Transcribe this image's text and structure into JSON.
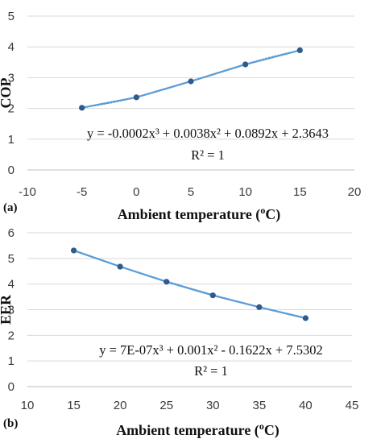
{
  "chart_data": [
    {
      "type": "scatter",
      "panel_label": "(a)",
      "xlabel_main": "Ambient temperature (",
      "xlabel_sup": "o",
      "xlabel_end": "C)",
      "ylabel": "COP",
      "xlim": [
        -10,
        20
      ],
      "ylim": [
        0,
        5
      ],
      "x_ticks": [
        "-10",
        "-5",
        "0",
        "5",
        "10",
        "15",
        "20"
      ],
      "y_ticks": [
        "0",
        "1",
        "2",
        "3",
        "4",
        "5"
      ],
      "grid": true,
      "series": [
        {
          "x": [
            -5,
            0,
            5,
            10,
            15
          ],
          "y": [
            2.02,
            2.36,
            2.88,
            3.43,
            3.89
          ]
        }
      ],
      "trendline": {
        "type": "poly3",
        "coef": [
          -0.0002,
          0.0038,
          0.0892,
          2.3643
        ],
        "style": "dotted"
      },
      "equation": "y = -0.0002x³ + 0.0038x² + 0.0892x + 2.3643",
      "r2": "R² = 1",
      "colors": {
        "marker": "#2e5b8c",
        "line": "#5b9bd5",
        "trend": "#5b9bd5"
      }
    },
    {
      "type": "scatter",
      "panel_label": "(b)",
      "xlabel_main": "Ambient temperature (",
      "xlabel_sup": "o",
      "xlabel_end": "C)",
      "ylabel": "EER",
      "xlim": [
        10,
        45
      ],
      "ylim": [
        0,
        6
      ],
      "x_ticks": [
        "10",
        "15",
        "20",
        "25",
        "30",
        "35",
        "40",
        "45"
      ],
      "y_ticks": [
        "0",
        "1",
        "2",
        "3",
        "4",
        "5",
        "6"
      ],
      "grid": true,
      "series": [
        {
          "x": [
            15,
            20,
            25,
            30,
            35,
            40
          ],
          "y": [
            5.31,
            4.68,
            4.09,
            3.56,
            3.1,
            2.67
          ]
        }
      ],
      "trendline": {
        "type": "poly3",
        "coef": [
          7e-07,
          0.001,
          -0.1622,
          7.5302
        ],
        "style": "dotted"
      },
      "equation": "y = 7E-07x³ + 0.001x² - 0.1622x + 7.5302",
      "r2": "R² = 1",
      "colors": {
        "marker": "#2e5b8c",
        "line": "#5b9bd5",
        "trend": "#5b9bd5"
      }
    }
  ]
}
